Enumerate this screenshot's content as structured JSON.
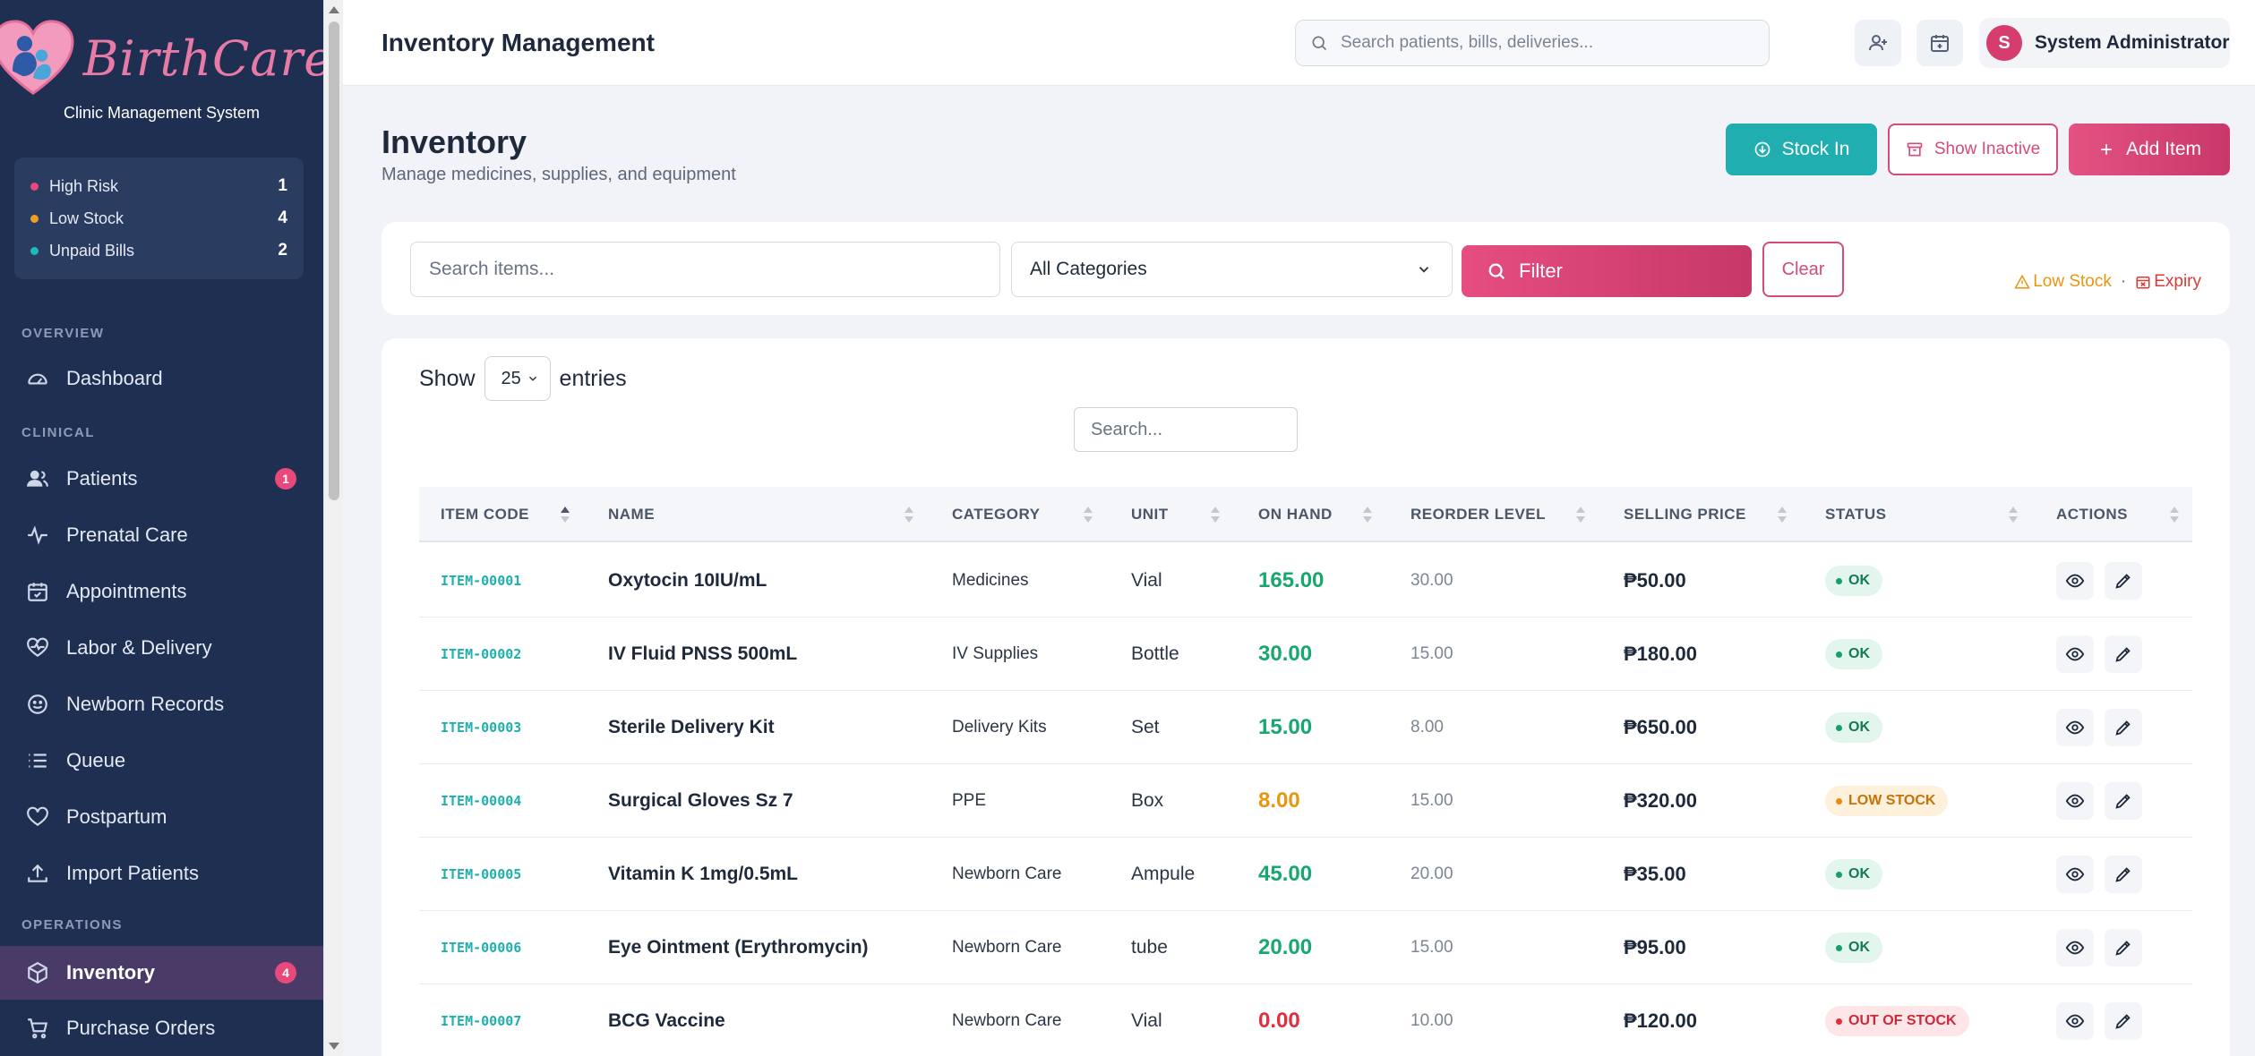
{
  "sidebar": {
    "logo_text": "BirthCare",
    "subtitle": "Clinic Management System",
    "stats": [
      {
        "label": "High Risk",
        "value": "1",
        "color": "#e8497a"
      },
      {
        "label": "Low Stock",
        "value": "4",
        "color": "#f0a020"
      },
      {
        "label": "Unpaid Bills",
        "value": "2",
        "color": "#1fb8b8"
      }
    ],
    "sections": {
      "overview": "OVERVIEW",
      "clinical": "CLINICAL",
      "operations": "OPERATIONS"
    },
    "items": [
      {
        "label": "Dashboard",
        "icon": "gauge-icon"
      },
      {
        "label": "Patients",
        "icon": "users-icon",
        "badge": "1"
      },
      {
        "label": "Prenatal Care",
        "icon": "pulse-icon"
      },
      {
        "label": "Appointments",
        "icon": "calendar-check-icon"
      },
      {
        "label": "Labor & Delivery",
        "icon": "heart-pulse-icon"
      },
      {
        "label": "Newborn Records",
        "icon": "smile-icon"
      },
      {
        "label": "Queue",
        "icon": "list-icon"
      },
      {
        "label": "Postpartum",
        "icon": "heart-icon"
      },
      {
        "label": "Import Patients",
        "icon": "upload-icon"
      },
      {
        "label": "Inventory",
        "icon": "box-icon",
        "badge": "4"
      },
      {
        "label": "Purchase Orders",
        "icon": "cart-icon"
      }
    ]
  },
  "header": {
    "title": "Inventory Management",
    "search_placeholder": "Search patients, bills, deliveries...",
    "user_initial": "S",
    "user_name": "System Administrator"
  },
  "page": {
    "title": "Inventory",
    "subtitle": "Manage medicines, supplies, and equipment",
    "stock_in": "Stock In",
    "show_inactive": "Show Inactive",
    "add_item": "Add Item"
  },
  "filters": {
    "search_placeholder": "Search items...",
    "category": "All Categories",
    "filter_label": "Filter",
    "clear_label": "Clear",
    "legend_low": "Low Stock",
    "legend_sep": "·",
    "legend_expiry": "Expiry"
  },
  "table": {
    "show_label": "Show",
    "entries_value": "25",
    "entries_label": "entries",
    "search_placeholder": "Search...",
    "columns": [
      "ITEM CODE",
      "NAME",
      "CATEGORY",
      "UNIT",
      "ON HAND",
      "REORDER LEVEL",
      "SELLING PRICE",
      "STATUS",
      "ACTIONS"
    ],
    "rows": [
      {
        "code": "ITEM-00001",
        "name": "Oxytocin 10IU/mL",
        "category": "Medicines",
        "unit": "Vial",
        "on_hand": "165.00",
        "reorder": "30.00",
        "price": "₱50.00",
        "status": "OK",
        "status_type": "ok"
      },
      {
        "code": "ITEM-00002",
        "name": "IV Fluid PNSS 500mL",
        "category": "IV Supplies",
        "unit": "Bottle",
        "on_hand": "30.00",
        "reorder": "15.00",
        "price": "₱180.00",
        "status": "OK",
        "status_type": "ok"
      },
      {
        "code": "ITEM-00003",
        "name": "Sterile Delivery Kit",
        "category": "Delivery Kits",
        "unit": "Set",
        "on_hand": "15.00",
        "reorder": "8.00",
        "price": "₱650.00",
        "status": "OK",
        "status_type": "ok"
      },
      {
        "code": "ITEM-00004",
        "name": "Surgical Gloves Sz 7",
        "category": "PPE",
        "unit": "Box",
        "on_hand": "8.00",
        "reorder": "15.00",
        "price": "₱320.00",
        "status": "LOW STOCK",
        "status_type": "low"
      },
      {
        "code": "ITEM-00005",
        "name": "Vitamin K 1mg/0.5mL",
        "category": "Newborn Care",
        "unit": "Ampule",
        "on_hand": "45.00",
        "reorder": "20.00",
        "price": "₱35.00",
        "status": "OK",
        "status_type": "ok"
      },
      {
        "code": "ITEM-00006",
        "name": "Eye Ointment (Erythromycin)",
        "category": "Newborn Care",
        "unit": "tube",
        "on_hand": "20.00",
        "reorder": "15.00",
        "price": "₱95.00",
        "status": "OK",
        "status_type": "ok"
      },
      {
        "code": "ITEM-00007",
        "name": "BCG Vaccine",
        "category": "Newborn Care",
        "unit": "Vial",
        "on_hand": "0.00",
        "reorder": "10.00",
        "price": "₱120.00",
        "status": "OUT OF STOCK",
        "status_type": "out"
      }
    ]
  },
  "colors": {
    "ok": "#17a86f",
    "low": "#e8960f",
    "out": "#e0303f",
    "accent": "#e0497a",
    "teal": "#20aeb0"
  }
}
